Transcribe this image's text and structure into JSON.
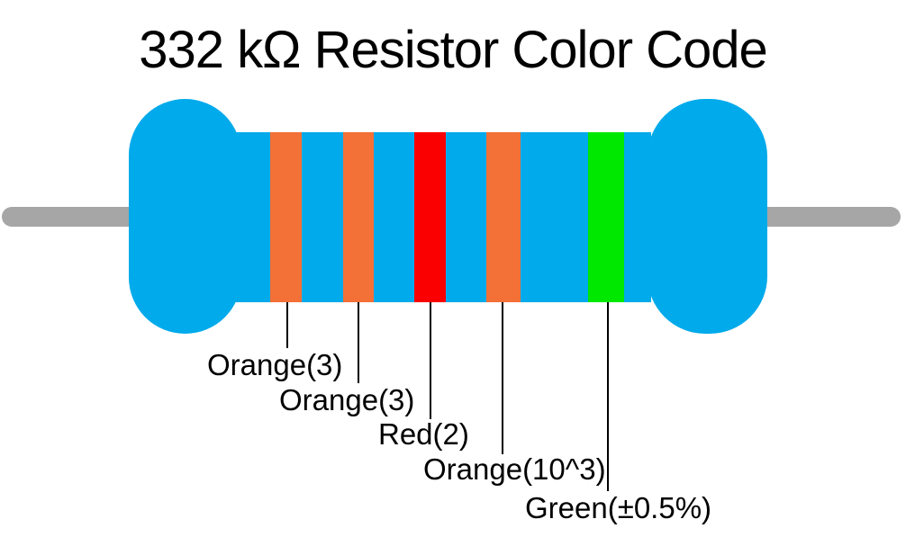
{
  "title": "332 kΩ Resistor Color Code",
  "resistor": {
    "value": "332 kΩ",
    "bands": [
      {
        "color_name": "Orange",
        "meaning": "3",
        "label": "Orange(3)",
        "hex": "#F37036"
      },
      {
        "color_name": "Orange",
        "meaning": "3",
        "label": "Orange(3)",
        "hex": "#F37036"
      },
      {
        "color_name": "Red",
        "meaning": "2",
        "label": "Red(2)",
        "hex": "#FA0000"
      },
      {
        "color_name": "Orange",
        "meaning": "10^3",
        "label": "Orange(10^3)",
        "hex": "#F37036"
      },
      {
        "color_name": "Green",
        "meaning": "±0.5%",
        "label": "Green(±0.5%)",
        "hex": "#00E800"
      }
    ]
  },
  "colors": {
    "body_blue": "#00AAEB",
    "lead_gray": "#A6A6A6",
    "text_black": "#000000"
  }
}
